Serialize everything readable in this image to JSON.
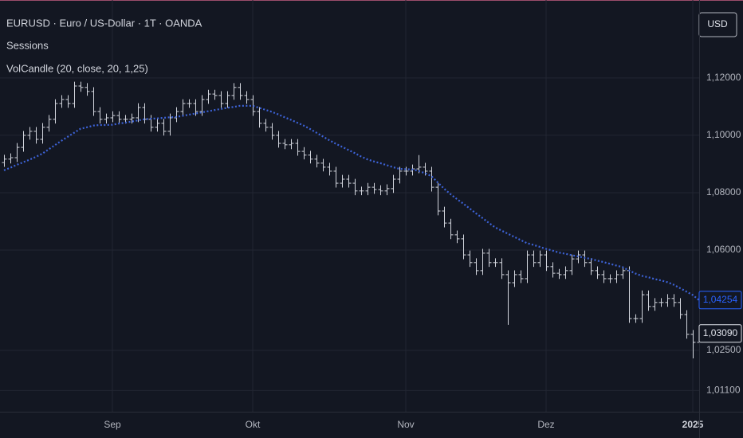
{
  "chart_data": {
    "type": "ohlc",
    "title": "EURUSD · Euro / US-Dollar · 1T · OANDA",
    "indicators": [
      "Sessions"
    ],
    "currency": "USD",
    "color": "#d1d4dc",
    "grid": true,
    "ylim": [
      1.0036,
      1.1472
    ],
    "yticks": [
      {
        "value": 1.12,
        "label": "1,12000"
      },
      {
        "value": 1.1,
        "label": "1,10000"
      },
      {
        "value": 1.08,
        "label": "1,08000"
      },
      {
        "value": 1.06,
        "label": "1,06000"
      },
      {
        "value": 1.025,
        "label": "1,02500"
      },
      {
        "value": 1.011,
        "label": "1,01100"
      }
    ],
    "categories": [
      null,
      null,
      null,
      null,
      null,
      null,
      null,
      null,
      null,
      null,
      null,
      null,
      null,
      null,
      null,
      null,
      null,
      "Sep",
      null,
      null,
      null,
      null,
      null,
      null,
      null,
      null,
      null,
      null,
      null,
      null,
      null,
      null,
      null,
      null,
      null,
      null,
      null,
      null,
      null,
      "Okt",
      null,
      null,
      null,
      null,
      null,
      null,
      null,
      null,
      null,
      null,
      null,
      null,
      null,
      null,
      null,
      null,
      null,
      null,
      null,
      null,
      null,
      null,
      null,
      "Nov",
      null,
      null,
      null,
      null,
      null,
      null,
      null,
      null,
      null,
      null,
      null,
      null,
      null,
      null,
      null,
      null,
      null,
      null,
      null,
      null,
      null,
      "Dez",
      null,
      null,
      null,
      null,
      null,
      null,
      null,
      null,
      null,
      null,
      null,
      null,
      null,
      null,
      null,
      null,
      null,
      null,
      null,
      null,
      null,
      null,
      "2025",
      null
    ],
    "open": [
      1.0905,
      1.0917,
      1.0922,
      1.0958,
      1.1,
      1.1014,
      1.0986,
      1.1028,
      1.1056,
      1.1111,
      1.1125,
      1.1111,
      1.1172,
      1.1167,
      1.1153,
      1.1083,
      1.1056,
      1.1061,
      1.1069,
      1.1056,
      1.1056,
      1.1061,
      1.1097,
      1.1056,
      1.1028,
      1.1042,
      1.1014,
      1.1061,
      1.1083,
      1.1111,
      1.1111,
      1.1083,
      1.1125,
      1.1144,
      1.1139,
      1.1111,
      1.1139,
      1.1167,
      1.1139,
      1.1125,
      1.1083,
      1.1042,
      1.1028,
      1.1,
      1.0972,
      1.0967,
      1.0972,
      1.0944,
      1.0931,
      1.0917,
      1.0903,
      1.0889,
      1.0875,
      1.0833,
      1.0847,
      1.0833,
      1.0806,
      1.0806,
      1.0819,
      1.0811,
      1.0806,
      1.0814,
      1.0847,
      1.0875,
      1.0875,
      1.0883,
      1.0889,
      1.0875,
      1.0819,
      1.0736,
      1.0694,
      1.0653,
      1.0639,
      1.0583,
      1.0556,
      1.0528,
      1.0589,
      1.0556,
      1.0556,
      1.0514,
      1.0486,
      1.0514,
      1.05,
      1.0583,
      1.0556,
      1.0583,
      1.0542,
      1.0519,
      1.0514,
      1.0528,
      1.0569,
      1.0583,
      1.0556,
      1.0528,
      1.0514,
      1.05,
      1.05,
      1.0514,
      1.0528,
      1.0361,
      1.0361,
      1.0444,
      1.0403,
      1.0417,
      1.0417,
      1.0431,
      1.0417,
      1.0375,
      1.0306,
      1.0278
    ],
    "high": [
      1.0932,
      1.0937,
      1.0973,
      1.1015,
      1.1029,
      1.1029,
      1.1043,
      1.1071,
      1.1126,
      1.114,
      1.114,
      1.1187,
      1.1187,
      1.1182,
      1.1168,
      1.1098,
      1.1076,
      1.1084,
      1.1084,
      1.1071,
      1.1076,
      1.1112,
      1.1112,
      1.1071,
      1.1057,
      1.1057,
      1.1076,
      1.1098,
      1.1126,
      1.1126,
      1.1126,
      1.114,
      1.1159,
      1.1159,
      1.1154,
      1.1154,
      1.1182,
      1.1182,
      1.1154,
      1.114,
      1.1098,
      1.1057,
      1.1043,
      1.1015,
      1.0987,
      1.0987,
      1.0987,
      1.0959,
      1.0946,
      1.0932,
      1.0918,
      1.0904,
      1.089,
      1.0862,
      1.0862,
      1.0848,
      1.0821,
      1.0834,
      1.0834,
      1.0826,
      1.0829,
      1.0862,
      1.089,
      1.089,
      1.0898,
      1.0931,
      1.0904,
      1.089,
      1.0834,
      1.0751,
      1.0709,
      1.0668,
      1.0654,
      1.0598,
      1.0571,
      1.0604,
      1.0604,
      1.0571,
      1.0571,
      1.0529,
      1.0529,
      1.0529,
      1.0598,
      1.0598,
      1.0598,
      1.0598,
      1.0557,
      1.0534,
      1.0543,
      1.0584,
      1.0598,
      1.0598,
      1.0571,
      1.0543,
      1.0529,
      1.0515,
      1.0529,
      1.0543,
      1.0543,
      1.0376,
      1.0459,
      1.0459,
      1.0432,
      1.0432,
      1.0446,
      1.0446,
      1.0432,
      1.039,
      1.0321,
      1.0324
    ],
    "low": [
      1.089,
      1.0902,
      1.0907,
      1.0943,
      1.0985,
      1.0971,
      1.0971,
      1.1013,
      1.1041,
      1.1096,
      1.1096,
      1.1096,
      1.1152,
      1.1138,
      1.1068,
      1.1041,
      1.1041,
      1.1046,
      1.1041,
      1.1041,
      1.1041,
      1.1046,
      1.1041,
      1.1013,
      1.1013,
      1.0999,
      1.0999,
      1.1046,
      1.1068,
      1.1096,
      1.1068,
      1.1068,
      1.111,
      1.1124,
      1.1096,
      1.1096,
      1.1124,
      1.1124,
      1.111,
      1.1068,
      1.1027,
      1.1013,
      1.0985,
      1.0957,
      1.0952,
      1.0952,
      1.0929,
      1.0916,
      1.0902,
      1.0888,
      1.0874,
      1.086,
      1.0818,
      1.0818,
      1.0818,
      1.0791,
      1.0791,
      1.0791,
      1.0796,
      1.0791,
      1.0791,
      1.0799,
      1.0832,
      1.086,
      1.086,
      1.0868,
      1.086,
      1.0804,
      1.0721,
      1.0679,
      1.0638,
      1.0624,
      1.0568,
      1.0541,
      1.0513,
      1.0513,
      1.0541,
      1.0541,
      1.0499,
      1.0339,
      1.0471,
      1.0485,
      1.0485,
      1.0541,
      1.0541,
      1.0527,
      1.0504,
      1.0499,
      1.0499,
      1.0513,
      1.0554,
      1.0541,
      1.0513,
      1.0499,
      1.0485,
      1.0485,
      1.0485,
      1.0499,
      1.0346,
      1.0346,
      1.0346,
      1.0388,
      1.0388,
      1.0402,
      1.0402,
      1.0402,
      1.036,
      1.0291,
      1.0222,
      1.0263
    ],
    "close": [
      1.0917,
      1.0922,
      1.0958,
      1.1,
      1.1014,
      1.0986,
      1.1028,
      1.1056,
      1.1111,
      1.1125,
      1.1111,
      1.1172,
      1.1167,
      1.1153,
      1.1083,
      1.1056,
      1.1061,
      1.1069,
      1.1056,
      1.1056,
      1.1061,
      1.1097,
      1.1056,
      1.1028,
      1.1042,
      1.1014,
      1.1061,
      1.1083,
      1.1111,
      1.1111,
      1.1083,
      1.1125,
      1.1144,
      1.1139,
      1.1111,
      1.1139,
      1.1167,
      1.1139,
      1.1125,
      1.1083,
      1.1042,
      1.1028,
      1.1,
      1.0972,
      1.0967,
      1.0972,
      1.0944,
      1.0931,
      1.0917,
      1.0903,
      1.0889,
      1.0875,
      1.0833,
      1.0847,
      1.0833,
      1.0806,
      1.0806,
      1.0819,
      1.0811,
      1.0806,
      1.0814,
      1.0847,
      1.0875,
      1.0875,
      1.0883,
      1.0889,
      1.0875,
      1.0819,
      1.0736,
      1.0694,
      1.0653,
      1.0639,
      1.0583,
      1.0556,
      1.0528,
      1.0589,
      1.0556,
      1.0556,
      1.0514,
      1.0486,
      1.0514,
      1.05,
      1.0583,
      1.0556,
      1.0583,
      1.0542,
      1.0519,
      1.0514,
      1.0528,
      1.0569,
      1.0583,
      1.0556,
      1.0528,
      1.0514,
      1.05,
      1.05,
      1.0514,
      1.0528,
      1.0361,
      1.0361,
      1.0444,
      1.0403,
      1.0417,
      1.0417,
      1.0431,
      1.0417,
      1.0375,
      1.0306,
      1.0278,
      1.0309
    ],
    "ma": {
      "name": "VolCandle (20, close, 20, 1,25)",
      "color": "#3d63d8",
      "values": [
        1.0878,
        1.0887,
        1.0897,
        1.0906,
        1.0915,
        1.0925,
        1.0936,
        1.0951,
        1.0966,
        1.0981,
        1.0995,
        1.1009,
        1.1023,
        1.1028,
        1.1034,
        1.1036,
        1.1036,
        1.1037,
        1.1041,
        1.1044,
        1.1048,
        1.1052,
        1.1056,
        1.1058,
        1.1059,
        1.1061,
        1.1063,
        1.1064,
        1.1068,
        1.1072,
        1.1076,
        1.108,
        1.1084,
        1.1088,
        1.1092,
        1.1096,
        1.1099,
        1.1103,
        1.1103,
        1.1103,
        1.1096,
        1.1089,
        1.1082,
        1.1073,
        1.1063,
        1.1054,
        1.1044,
        1.1034,
        1.1022,
        1.1009,
        1.0996,
        1.0983,
        1.0971,
        1.096,
        1.0949,
        1.0938,
        1.0926,
        1.0916,
        1.0909,
        1.0903,
        1.0896,
        1.0889,
        1.0883,
        1.0882,
        1.0881,
        1.0876,
        1.0868,
        1.0858,
        1.0836,
        1.0814,
        1.0795,
        1.0778,
        1.0762,
        1.0745,
        1.0728,
        1.0712,
        1.0695,
        1.0679,
        1.0668,
        1.0657,
        1.0646,
        1.0635,
        1.0624,
        1.0618,
        1.0611,
        1.0604,
        1.0598,
        1.0591,
        1.0587,
        1.0582,
        1.0578,
        1.0573,
        1.0569,
        1.0563,
        1.0558,
        1.0552,
        1.0546,
        1.054,
        1.0529,
        1.0518,
        1.051,
        1.0505,
        1.0499,
        1.0494,
        1.0488,
        1.0479,
        1.0467,
        1.0455,
        1.0443,
        1.0425
      ]
    },
    "price_labels": [
      {
        "value": 1.04254,
        "label": "1,04254",
        "color": "#2962ff"
      },
      {
        "value": 1.0309,
        "label": "1,03090",
        "color": "#e0e3eb"
      }
    ]
  }
}
